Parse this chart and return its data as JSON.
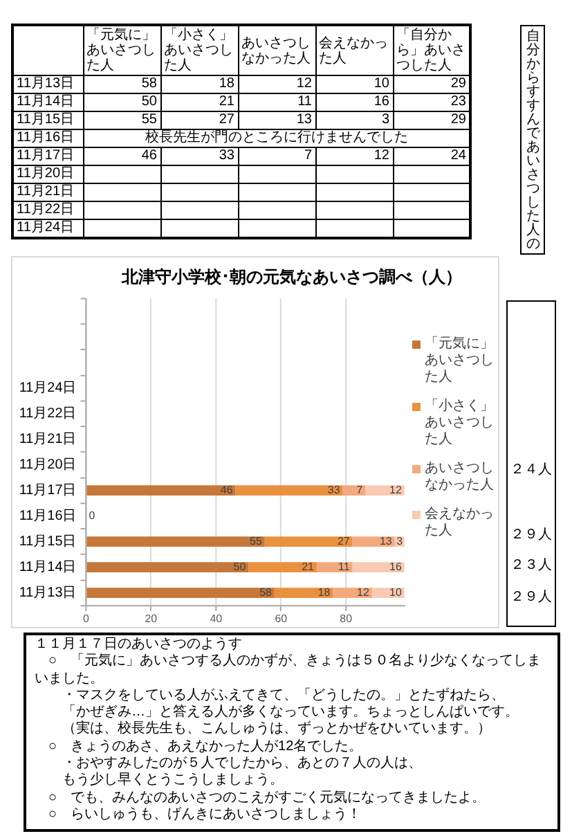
{
  "chart_data": [
    {
      "type": "other",
      "categories": [
        "11月13日",
        "11月14日",
        "11月15日",
        "11月16日",
        "11月17日",
        "11月20日",
        "11月21日",
        "11月22日",
        "11月24日"
      ],
      "series": [
        {
          "name": "「元気に」あいさつした人",
          "values": [
            58,
            50,
            55,
            null,
            46,
            null,
            null,
            null,
            null
          ]
        },
        {
          "name": "「小さく」あいさつした人",
          "values": [
            18,
            21,
            27,
            null,
            33,
            null,
            null,
            null,
            null
          ]
        },
        {
          "name": "あいさつしなかった人",
          "values": [
            12,
            11,
            13,
            null,
            7,
            null,
            null,
            null,
            null
          ]
        },
        {
          "name": "会えなかった人",
          "values": [
            10,
            16,
            3,
            null,
            12,
            null,
            null,
            null,
            null
          ]
        },
        {
          "name": "「自分から」あいさつした人",
          "values": [
            29,
            23,
            29,
            null,
            24,
            null,
            null,
            null,
            null
          ]
        }
      ],
      "data_labels": true,
      "annotations": [
        {
          "text": "校長先生が門のところに行けませんでした",
          "y": "11月16日"
        },
        "自分からすすんであいさつした人の"
      ]
    },
    {
      "type": "bar",
      "orientation": "horizontal",
      "stacked": true,
      "title": "北津守小学校･朝の元気なあいさつ調べ（人）",
      "categories": [
        null,
        null,
        null,
        "11月24日",
        "11月22日",
        "11月21日",
        "11月20日",
        "11月17日",
        "11月16日",
        "11月15日",
        "11月14日",
        "11月13日"
      ],
      "series": [
        {
          "name": "「元気に」あいさつした人",
          "color": "#c5783a",
          "values": [
            null,
            null,
            null,
            null,
            null,
            null,
            null,
            46,
            0,
            55,
            50,
            58
          ]
        },
        {
          "name": "「小さく」あいさつした人",
          "color": "#ea9140",
          "values": [
            null,
            null,
            null,
            null,
            null,
            null,
            null,
            33,
            null,
            27,
            21,
            18
          ]
        },
        {
          "name": "あいさつしなかった人",
          "color": "#f4a97d",
          "values": [
            null,
            null,
            null,
            null,
            null,
            null,
            null,
            7,
            null,
            13,
            11,
            12
          ]
        },
        {
          "name": "会えなかった人",
          "color": "#f9cab2",
          "values": [
            null,
            null,
            null,
            null,
            null,
            null,
            null,
            12,
            null,
            3,
            16,
            10
          ]
        }
      ],
      "xlim": [
        0,
        98
      ],
      "xticks": [
        0,
        20,
        40,
        60,
        80
      ],
      "grid": "x",
      "legend": "right",
      "data_labels": true,
      "annotations": [
        "２４人",
        "２９人",
        "２３人",
        "２９人"
      ]
    },
    {
      "type": "other",
      "title": "１１月１７日のあいさつのようす",
      "annotations": [
        "　○　「元気に」あいさつする人のかずが、きょうは５０名より少なくなってしまいました。",
        "　　・マスクをしている人がふえてきて、「どうしたの。」とたずねたら、",
        "　　「かぜぎみ…」と答える人が多くなっています。ちょっとしんぱいです。",
        "　　（実は、校長先生も、こんしゅうは、ずっとかぜをひいています。）",
        "　○　きょうのあさ、あえなかった人が12名でした。",
        "　　・おやすみしたのが５人でしたから、あとの７人の人は、",
        "　　もう少し早くとうこうしましょう。",
        "　○　でも、みんなのあいさつのこえがすごく元気になってきましたよ。",
        "　○　らいしゅうも、げんきにあいさつしましょう！"
      ]
    }
  ]
}
